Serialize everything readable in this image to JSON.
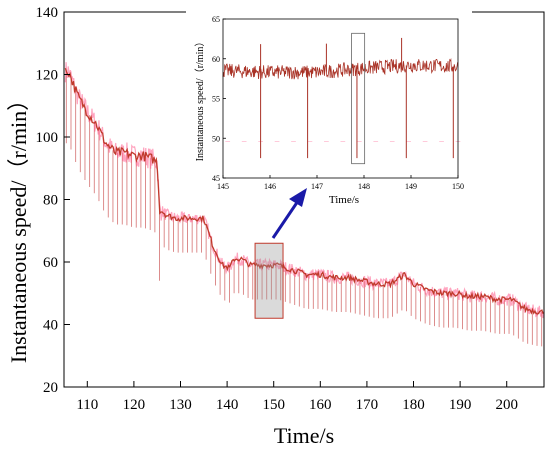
{
  "chart_data": [
    {
      "type": "line",
      "title": "",
      "xlabel": "Time/s",
      "ylabel": "Instantaneous speed/（r/min）",
      "xlim": [
        105,
        208
      ],
      "ylim": [
        20,
        140
      ],
      "x_ticks": [
        110,
        120,
        130,
        140,
        150,
        160,
        170,
        180,
        190,
        200
      ],
      "y_ticks": [
        20,
        40,
        60,
        80,
        100,
        120,
        140
      ],
      "grid": false,
      "legend": "none",
      "series": [
        {
          "color": "#c0392b",
          "x": [
            106,
            108,
            110,
            112,
            114,
            116,
            118,
            120,
            122,
            124,
            125,
            125.5,
            127,
            129,
            131,
            133,
            135,
            137,
            139,
            140.5,
            141.5,
            143,
            145,
            147,
            149,
            151,
            153,
            155,
            157,
            160,
            163,
            166,
            169,
            172,
            175,
            178,
            180,
            183,
            186,
            189,
            192,
            195,
            198,
            201,
            204,
            207
          ],
          "values": [
            121,
            113,
            108,
            104,
            98,
            95,
            95,
            94,
            94,
            93,
            92,
            77,
            75,
            74,
            74,
            74,
            74,
            65,
            59,
            58,
            61,
            61,
            59,
            59,
            59,
            59,
            58,
            57,
            56,
            56,
            55,
            55,
            54,
            53,
            53,
            56,
            53,
            51,
            50,
            50,
            49,
            49,
            48,
            48,
            45,
            44
          ]
        }
      ],
      "dips": {
        "period_s": 1,
        "early_depth": 23,
        "late_depth": 11
      },
      "highlight_region": {
        "x": [
          146,
          152
        ],
        "y": [
          42,
          66
        ]
      }
    },
    {
      "type": "line",
      "title": "",
      "xlabel": "Time/s",
      "ylabel": "Instantaneous speed/（r/min）",
      "xlim": [
        145,
        150
      ],
      "ylim": [
        45,
        65
      ],
      "x_ticks": [
        145,
        146,
        147,
        148,
        149,
        150
      ],
      "y_ticks": [
        45,
        50,
        55,
        60,
        65
      ],
      "grid": false,
      "legend": "none",
      "series": [
        {
          "color": "#a93226",
          "x": [
            145,
            146,
            147,
            148,
            149,
            150
          ],
          "values": [
            58.5,
            58.3,
            58.3,
            58.8,
            59.2,
            59.0
          ]
        }
      ],
      "spikes": {
        "up": [
          145.8,
          147.2,
          148.8
        ],
        "down": [
          145.8,
          146.8,
          147.85,
          148.9,
          149.9
        ],
        "down_to": 47.5
      },
      "highlight_region": {
        "x": [
          147.8,
          147.95
        ],
        "y": [
          46.8,
          63.2
        ]
      }
    }
  ]
}
